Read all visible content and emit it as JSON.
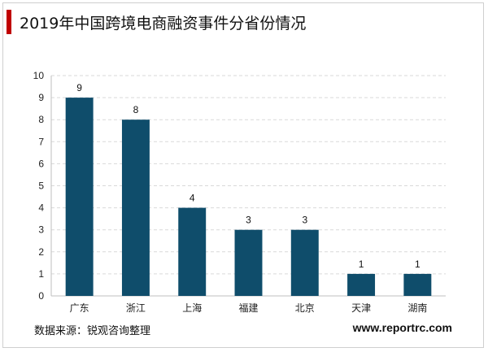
{
  "header": {
    "title": "2019年中国跨境电商融资事件分省份情况"
  },
  "footer": {
    "source": "数据来源：锐观咨询整理",
    "website": "www.reportrc.com"
  },
  "colors": {
    "bar": "#0f4d6b",
    "accent": "#c00000",
    "grid": "#d9d9d9"
  },
  "chart_data": {
    "type": "bar",
    "title": "2019年中国跨境电商融资事件分省份情况",
    "xlabel": "",
    "ylabel": "",
    "categories": [
      "广东",
      "浙江",
      "上海",
      "福建",
      "北京",
      "天津",
      "湖南"
    ],
    "values": [
      9,
      8,
      4,
      3,
      3,
      1,
      1
    ],
    "ylim": [
      0,
      10
    ],
    "yticks": [
      0,
      1,
      2,
      3,
      4,
      5,
      6,
      7,
      8,
      9,
      10
    ],
    "grid": true,
    "grid_style": "dashed",
    "legend": "none",
    "data_labels": true
  }
}
